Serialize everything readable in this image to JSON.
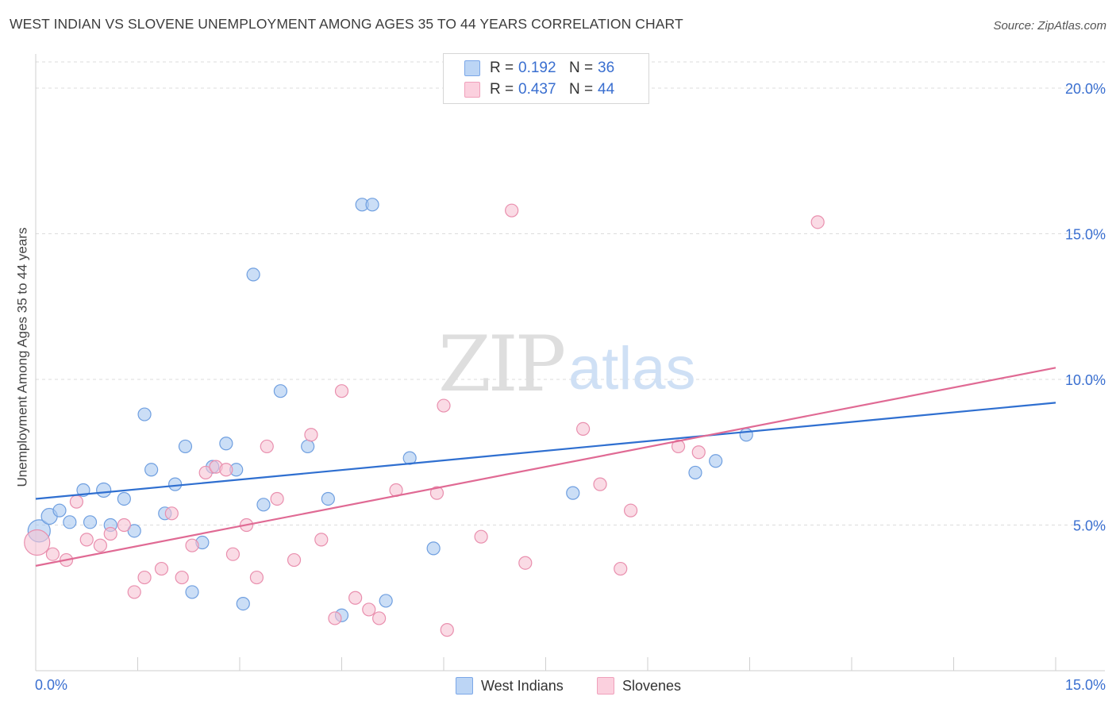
{
  "title": "WEST INDIAN VS SLOVENE UNEMPLOYMENT AMONG AGES 35 TO 44 YEARS CORRELATION CHART",
  "source": "Source: ZipAtlas.com",
  "watermark": {
    "zip": "ZIP",
    "atlas": "atlas"
  },
  "legend": {
    "r_label": "R =",
    "n_label": "N =",
    "rows": [
      {
        "r": "0.192",
        "n": "36",
        "color": "#7ba7e8"
      },
      {
        "r": "0.437",
        "n": "44",
        "color": "#f0a0bb"
      }
    ]
  },
  "colors": {
    "blue_fill": "#a9c8f0",
    "blue_stroke": "#6f9fe0",
    "blue_line": "#2f6fd0",
    "pink_fill": "#f7c3d3",
    "pink_stroke": "#e98fae",
    "pink_line": "#e06a94",
    "tick_label": "#3a6fd0"
  },
  "chart_data": {
    "type": "scatter",
    "title": "WEST INDIAN VS SLOVENE UNEMPLOYMENT AMONG AGES 35 TO 44 YEARS CORRELATION CHART",
    "xlabel": "",
    "ylabel": "Unemployment Among Ages 35 to 44 years",
    "xlim": [
      0,
      15
    ],
    "ylim": [
      0,
      20
    ],
    "x_tick_labels": [
      "0.0%",
      "15.0%"
    ],
    "y_ticks": [
      5,
      10,
      15,
      20
    ],
    "y_tick_labels": [
      "5.0%",
      "10.0%",
      "15.0%",
      "20.0%"
    ],
    "grid": true,
    "series": [
      {
        "name": "West Indians",
        "r": 0.192,
        "n": 36,
        "trend": [
          [
            0,
            5.9
          ],
          [
            15,
            9.2
          ]
        ],
        "points": [
          [
            0.05,
            4.8,
            14
          ],
          [
            0.2,
            5.3,
            10
          ],
          [
            0.35,
            5.5,
            8
          ],
          [
            0.5,
            5.1,
            8
          ],
          [
            0.7,
            6.2,
            8
          ],
          [
            0.8,
            5.1,
            8
          ],
          [
            1.0,
            6.2,
            9
          ],
          [
            1.1,
            5.0,
            8
          ],
          [
            1.3,
            5.9,
            8
          ],
          [
            1.45,
            4.8,
            8
          ],
          [
            1.6,
            8.8,
            8
          ],
          [
            1.7,
            6.9,
            8
          ],
          [
            1.9,
            5.4,
            8
          ],
          [
            2.05,
            6.4,
            8
          ],
          [
            2.2,
            7.7,
            8
          ],
          [
            2.3,
            2.7,
            8
          ],
          [
            2.45,
            4.4,
            8
          ],
          [
            2.6,
            7.0,
            8
          ],
          [
            2.8,
            7.8,
            8
          ],
          [
            2.95,
            6.9,
            8
          ],
          [
            3.05,
            2.3,
            8
          ],
          [
            3.2,
            13.6,
            8
          ],
          [
            3.35,
            5.7,
            8
          ],
          [
            3.6,
            9.6,
            8
          ],
          [
            4.0,
            7.7,
            8
          ],
          [
            4.3,
            5.9,
            8
          ],
          [
            4.5,
            1.9,
            8
          ],
          [
            4.8,
            16.0,
            8
          ],
          [
            4.95,
            16.0,
            8
          ],
          [
            5.15,
            2.4,
            8
          ],
          [
            5.5,
            7.3,
            8
          ],
          [
            5.85,
            4.2,
            8
          ],
          [
            7.9,
            6.1,
            8
          ],
          [
            9.7,
            6.8,
            8
          ],
          [
            10.0,
            7.2,
            8
          ],
          [
            10.45,
            8.1,
            8
          ]
        ]
      },
      {
        "name": "Slovenes",
        "r": 0.437,
        "n": 44,
        "trend": [
          [
            0,
            3.6
          ],
          [
            15,
            10.4
          ]
        ],
        "points": [
          [
            0.02,
            4.4,
            16
          ],
          [
            0.25,
            4.0,
            8
          ],
          [
            0.45,
            3.8,
            8
          ],
          [
            0.6,
            5.8,
            8
          ],
          [
            0.75,
            4.5,
            8
          ],
          [
            0.95,
            4.3,
            8
          ],
          [
            1.1,
            4.7,
            8
          ],
          [
            1.3,
            5.0,
            8
          ],
          [
            1.45,
            2.7,
            8
          ],
          [
            1.6,
            3.2,
            8
          ],
          [
            1.85,
            3.5,
            8
          ],
          [
            2.0,
            5.4,
            8
          ],
          [
            2.15,
            3.2,
            8
          ],
          [
            2.3,
            4.3,
            8
          ],
          [
            2.5,
            6.8,
            8
          ],
          [
            2.65,
            7.0,
            8
          ],
          [
            2.8,
            6.9,
            8
          ],
          [
            2.9,
            4.0,
            8
          ],
          [
            3.1,
            5.0,
            8
          ],
          [
            3.25,
            3.2,
            8
          ],
          [
            3.4,
            7.7,
            8
          ],
          [
            3.55,
            5.9,
            8
          ],
          [
            3.8,
            3.8,
            8
          ],
          [
            4.05,
            8.1,
            8
          ],
          [
            4.2,
            4.5,
            8
          ],
          [
            4.4,
            1.8,
            8
          ],
          [
            4.5,
            9.6,
            8
          ],
          [
            4.7,
            2.5,
            8
          ],
          [
            4.9,
            2.1,
            8
          ],
          [
            5.05,
            1.8,
            8
          ],
          [
            5.3,
            6.2,
            8
          ],
          [
            5.9,
            6.1,
            8
          ],
          [
            6.0,
            9.1,
            8
          ],
          [
            6.05,
            1.4,
            8
          ],
          [
            6.55,
            4.6,
            8
          ],
          [
            7.0,
            15.8,
            8
          ],
          [
            7.2,
            3.7,
            8
          ],
          [
            8.05,
            8.3,
            8
          ],
          [
            8.3,
            6.4,
            8
          ],
          [
            8.6,
            3.5,
            8
          ],
          [
            8.75,
            5.5,
            8
          ],
          [
            9.45,
            7.7,
            8
          ],
          [
            9.75,
            7.5,
            8
          ],
          [
            11.5,
            15.4,
            8
          ]
        ]
      }
    ],
    "legend_position": "bottom-center"
  }
}
